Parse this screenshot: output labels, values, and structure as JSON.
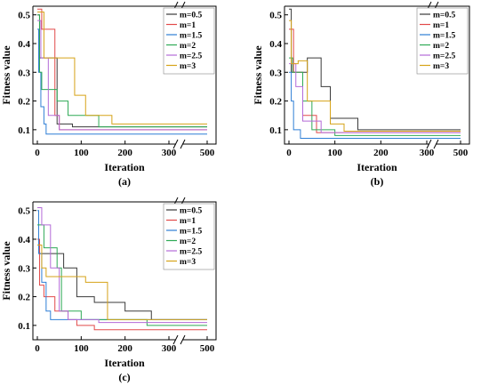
{
  "figure": {
    "colors": {
      "m=0.5": "#3a3a3a",
      "m=1": "#e24a4a",
      "m=1.5": "#2f7fd6",
      "m=2": "#2eaa55",
      "m=2.5": "#b46bd8",
      "m=3": "#d6a318"
    }
  },
  "chart_data": [
    {
      "type": "line",
      "step": true,
      "panel_label": "(a)",
      "xlabel": "Iteration",
      "ylabel": "Fitness value",
      "x_ticks": [
        0,
        100,
        200,
        300,
        500
      ],
      "x_axis_break": [
        300,
        420
      ],
      "y_ticks": [
        0.1,
        0.2,
        0.3,
        0.4,
        0.5
      ],
      "ylim": [
        0.05,
        0.53
      ],
      "legend_position": "top-right",
      "grid": false,
      "series": [
        {
          "name": "m=0.5",
          "x": [
            0,
            5,
            35,
            45,
            80,
            500
          ],
          "y": [
            0.5,
            0.35,
            0.35,
            0.12,
            0.11,
            0.11
          ]
        },
        {
          "name": "m=1",
          "x": [
            0,
            10,
            40,
            50,
            500
          ],
          "y": [
            0.52,
            0.45,
            0.15,
            0.1,
            0.1
          ]
        },
        {
          "name": "m=1.5",
          "x": [
            0,
            3,
            8,
            15,
            20,
            500
          ],
          "y": [
            0.45,
            0.3,
            0.18,
            0.12,
            0.085,
            0.085
          ]
        },
        {
          "name": "m=2",
          "x": [
            0,
            5,
            10,
            45,
            70,
            140,
            500
          ],
          "y": [
            0.5,
            0.3,
            0.24,
            0.2,
            0.15,
            0.11,
            0.11
          ]
        },
        {
          "name": "m=2.5",
          "x": [
            0,
            8,
            25,
            50,
            500
          ],
          "y": [
            0.48,
            0.35,
            0.15,
            0.1,
            0.1
          ]
        },
        {
          "name": "m=3",
          "x": [
            0,
            15,
            65,
            85,
            110,
            170,
            280,
            500
          ],
          "y": [
            0.51,
            0.35,
            0.35,
            0.22,
            0.15,
            0.12,
            0.12,
            0.12
          ]
        }
      ]
    },
    {
      "type": "line",
      "step": true,
      "panel_label": "(b)",
      "xlabel": "Iteration",
      "ylabel": "Fitness value",
      "x_ticks": [
        0,
        100,
        200,
        300,
        500
      ],
      "x_axis_break": [
        300,
        420
      ],
      "y_ticks": [
        0.1,
        0.2,
        0.3,
        0.4,
        0.5
      ],
      "ylim": [
        0.05,
        0.53
      ],
      "legend_position": "top-right",
      "grid": false,
      "series": [
        {
          "name": "m=0.5",
          "x": [
            0,
            5,
            40,
            70,
            90,
            150,
            500
          ],
          "y": [
            0.52,
            0.3,
            0.35,
            0.25,
            0.14,
            0.1,
            0.1
          ]
        },
        {
          "name": "m=1",
          "x": [
            0,
            10,
            30,
            60,
            500
          ],
          "y": [
            0.45,
            0.3,
            0.15,
            0.09,
            0.09
          ]
        },
        {
          "name": "m=1.5",
          "x": [
            0,
            5,
            10,
            25,
            500
          ],
          "y": [
            0.3,
            0.2,
            0.1,
            0.07,
            0.07
          ]
        },
        {
          "name": "m=2",
          "x": [
            0,
            8,
            30,
            50,
            100,
            500
          ],
          "y": [
            0.35,
            0.3,
            0.2,
            0.1,
            0.08,
            0.08
          ]
        },
        {
          "name": "m=2.5",
          "x": [
            0,
            15,
            30,
            70,
            500
          ],
          "y": [
            0.33,
            0.25,
            0.13,
            0.09,
            0.09
          ]
        },
        {
          "name": "m=3",
          "x": [
            0,
            5,
            20,
            40,
            90,
            120,
            500
          ],
          "y": [
            0.48,
            0.33,
            0.34,
            0.2,
            0.12,
            0.095,
            0.095
          ]
        }
      ]
    },
    {
      "type": "line",
      "step": true,
      "panel_label": "(c)",
      "xlabel": "Iteration",
      "ylabel": "Fitness value",
      "x_ticks": [
        0,
        100,
        200,
        300,
        500
      ],
      "x_axis_break": [
        300,
        420
      ],
      "y_ticks": [
        0.1,
        0.2,
        0.3,
        0.4,
        0.5
      ],
      "ylim": [
        0.05,
        0.53
      ],
      "legend_position": "top-right",
      "grid": false,
      "series": [
        {
          "name": "m=0.5",
          "x": [
            0,
            5,
            30,
            60,
            90,
            130,
            200,
            260,
            500
          ],
          "y": [
            0.4,
            0.35,
            0.35,
            0.3,
            0.2,
            0.18,
            0.15,
            0.12,
            0.12
          ]
        },
        {
          "name": "m=1",
          "x": [
            0,
            5,
            15,
            40,
            70,
            90,
            130,
            500
          ],
          "y": [
            0.4,
            0.24,
            0.2,
            0.15,
            0.12,
            0.1,
            0.085,
            0.085
          ]
        },
        {
          "name": "m=1.5",
          "x": [
            0,
            3,
            10,
            20,
            30,
            500
          ],
          "y": [
            0.5,
            0.35,
            0.25,
            0.15,
            0.12,
            0.12
          ]
        },
        {
          "name": "m=2",
          "x": [
            0,
            15,
            45,
            55,
            100,
            250,
            500
          ],
          "y": [
            0.45,
            0.37,
            0.3,
            0.15,
            0.12,
            0.1,
            0.1
          ]
        },
        {
          "name": "m=2.5",
          "x": [
            0,
            10,
            30,
            50,
            70,
            140,
            500
          ],
          "y": [
            0.51,
            0.45,
            0.3,
            0.15,
            0.12,
            0.11,
            0.11
          ]
        },
        {
          "name": "m=3",
          "x": [
            0,
            10,
            20,
            80,
            110,
            160,
            500
          ],
          "y": [
            0.38,
            0.3,
            0.27,
            0.27,
            0.25,
            0.12,
            0.12
          ]
        }
      ]
    }
  ]
}
